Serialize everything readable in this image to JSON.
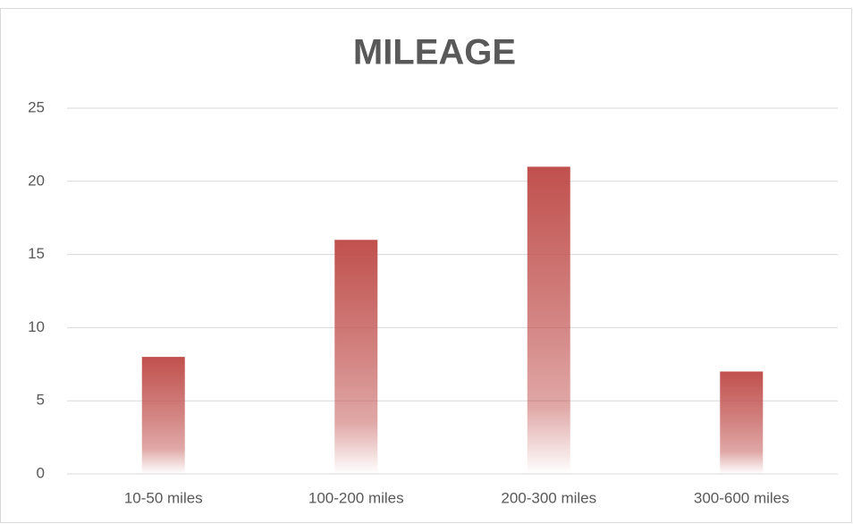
{
  "chart_data": {
    "type": "bar",
    "title": "MILEAGE",
    "categories": [
      "10-50 miles",
      "100-200 miles",
      "200-300 miles",
      "300-600 miles"
    ],
    "values": [
      8,
      16,
      21,
      7
    ],
    "color": "#c0504d",
    "ylim": [
      0,
      25
    ],
    "yticks": [
      0,
      5,
      10,
      15,
      20,
      25
    ],
    "grid": true
  }
}
